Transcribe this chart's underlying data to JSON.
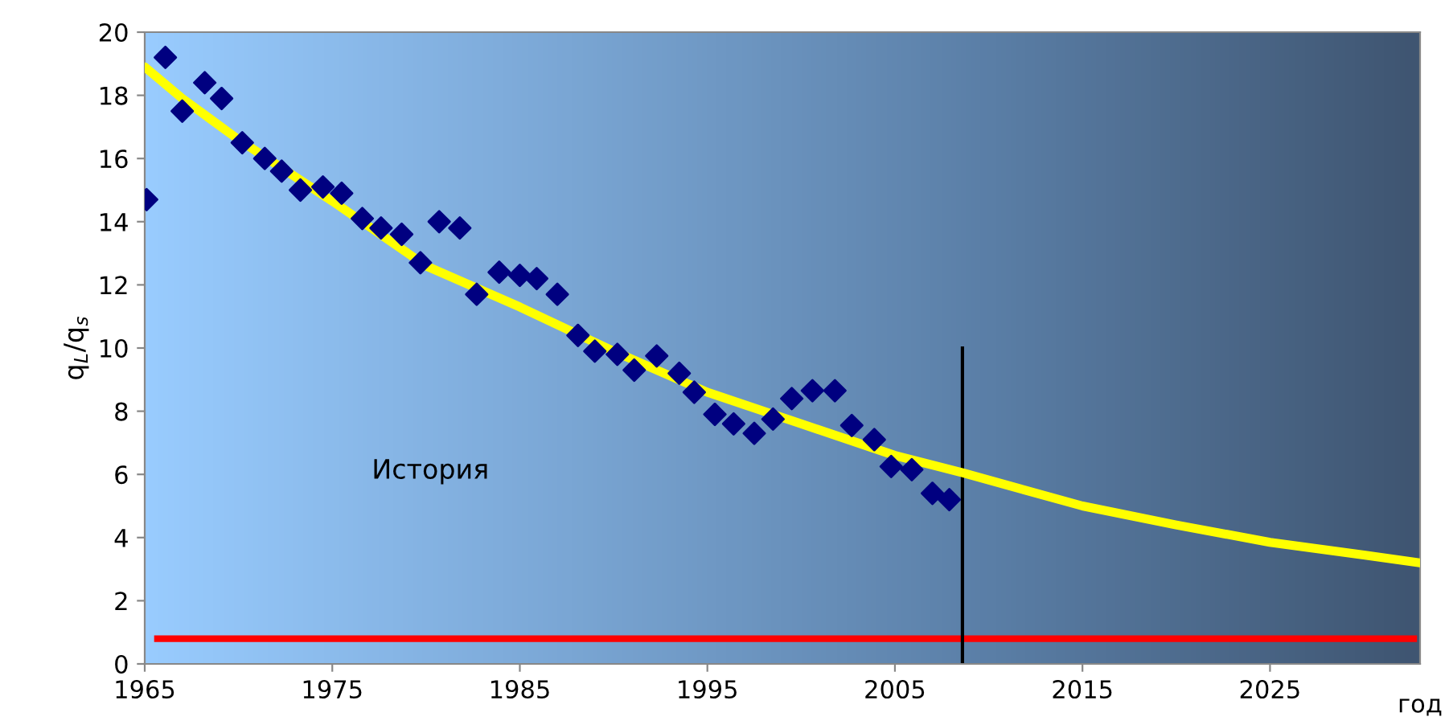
{
  "chart_data": {
    "type": "scatter",
    "xlabel": "год",
    "ylabel": "q$_{L}$/q$_{s}$",
    "xlim": [
      1965,
      2033
    ],
    "xticks": [
      1965,
      1975,
      1985,
      1995,
      2005,
      2015,
      2025
    ],
    "ylim": [
      0,
      20
    ],
    "yticks": [
      0,
      2,
      4,
      6,
      8,
      10,
      12,
      14,
      16,
      18,
      20
    ],
    "grid": false,
    "legend": false,
    "marker": "diamond",
    "series": [
      {
        "color": "#000080",
        "x": [
          1965.1,
          1966.1,
          1967.0,
          1968.2,
          1969.1,
          1970.2,
          1971.4,
          1972.3,
          1973.3,
          1974.5,
          1975.5,
          1976.6,
          1977.6,
          1978.7,
          1979.7,
          1980.7,
          1981.8,
          1982.7,
          1983.9,
          1985.0,
          1985.9,
          1987.0,
          1988.1,
          1989.0,
          1990.2,
          1991.1,
          1992.3,
          1993.5,
          1994.3,
          1995.4,
          1996.4,
          1997.5,
          1998.5,
          1999.5,
          2000.6,
          2001.8,
          2002.7,
          2003.9,
          2004.8,
          2005.9,
          2007.0,
          2007.9
        ],
        "values": [
          14.7,
          19.2,
          17.5,
          18.4,
          17.9,
          16.5,
          16.0,
          15.6,
          15.0,
          15.1,
          14.9,
          14.1,
          13.8,
          13.6,
          12.7,
          14.0,
          13.8,
          11.7,
          12.4,
          12.3,
          12.2,
          11.7,
          10.4,
          9.9,
          9.8,
          9.3,
          9.75,
          9.2,
          8.6,
          7.9,
          7.6,
          7.3,
          7.75,
          8.4,
          8.65,
          8.65,
          7.55,
          7.1,
          6.25,
          6.15,
          5.4,
          5.2
        ]
      },
      {
        "type": "line",
        "color": "#ffff00",
        "marker": "none",
        "x": [
          1965,
          1967,
          1970,
          1975,
          1980,
          1985,
          1990,
          1995,
          2000,
          2005,
          2008.6,
          2015,
          2020,
          2025,
          2030,
          2033
        ],
        "values": [
          18.9,
          17.9,
          16.6,
          14.65,
          12.6,
          11.3,
          9.9,
          8.6,
          7.6,
          6.6,
          6.05,
          5.0,
          4.4,
          3.85,
          3.45,
          3.2
        ]
      }
    ],
    "ref_lines": [
      {
        "axis": "y",
        "value": 0.8,
        "label": null,
        "color": "#ff0000",
        "line_style": "solid"
      },
      {
        "axis": "x",
        "value": 2008.6,
        "label": null,
        "color": "#000000",
        "line_style": "solid"
      }
    ],
    "annotations": [
      "История"
    ]
  }
}
